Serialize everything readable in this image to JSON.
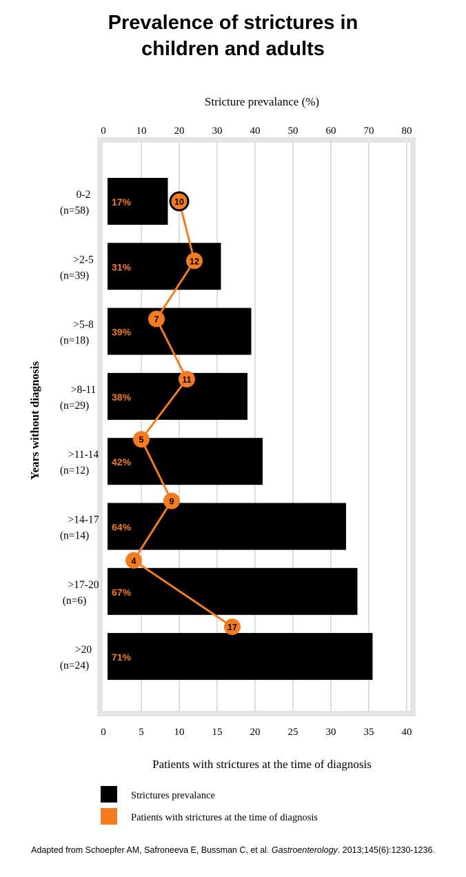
{
  "title_line1": "Prevalence of strictures in",
  "title_line2": "children and adults",
  "caption": {
    "prefix": "Adapted from Schoepfer AM, Safroneeva E, Bussman C, et al. ",
    "journal": "Gastroenterology",
    "suffix": ". 2013;145(6):1230-1236."
  },
  "colors": {
    "bar": "#000000",
    "line": "#f47b20",
    "frame": "#e4e4e4",
    "grid": "#bbbbbb",
    "percent_text": "#f47b20",
    "marker_text": "#000000"
  },
  "chart_data": {
    "type": "bar",
    "orientation": "horizontal",
    "top_axis_label": "Stricture prevalance (%)",
    "top_ticks": [
      "0",
      "10",
      "20",
      "30",
      "40",
      "50",
      "60",
      "70",
      "80"
    ],
    "top_range": [
      0,
      80
    ],
    "bottom_axis_label": "Patients with strictures at the time of diagnosis",
    "bottom_ticks": [
      "0",
      "5",
      "10",
      "15",
      "20",
      "25",
      "30",
      "35",
      "40"
    ],
    "bottom_range": [
      0,
      40
    ],
    "y_axis_label": "Years without diagnosis",
    "grid": true,
    "categories": [
      {
        "range": "0-2",
        "n": "(n=58)"
      },
      {
        "range": ">2-5",
        "n": "(n=39)"
      },
      {
        "range": ">5-8",
        "n": "(n=18)"
      },
      {
        "range": ">8-11",
        "n": "(n=29)"
      },
      {
        "range": ">11-14",
        "n": "(n=12)"
      },
      {
        "range": ">14-17",
        "n": "(n=14)"
      },
      {
        "range": ">17-20",
        "n": "(n=6)"
      },
      {
        "range": ">20",
        "n": "(n=24)"
      }
    ],
    "series": [
      {
        "name": "Strictures prevalance",
        "kind": "bar",
        "axis": "top",
        "values": [
          17,
          31,
          39,
          38,
          42,
          64,
          67,
          71
        ],
        "labels": [
          "17%",
          "31%",
          "39%",
          "38%",
          "42%",
          "64%",
          "67%",
          "71%"
        ]
      },
      {
        "name": "Patients with strictures at the time of diagnosis",
        "kind": "line",
        "axis": "bottom",
        "values": [
          10,
          12,
          7,
          11,
          5,
          9,
          4,
          17
        ],
        "labels": [
          "10",
          "12",
          "7",
          "11",
          "5",
          "9",
          "4",
          "17"
        ]
      }
    ],
    "legend": [
      {
        "label": "Strictures prevalance",
        "color": "#000000"
      },
      {
        "label": "Patients with strictures at the time of diagnosis",
        "color": "#f47b20"
      }
    ],
    "legend_position": "bottom-left"
  }
}
